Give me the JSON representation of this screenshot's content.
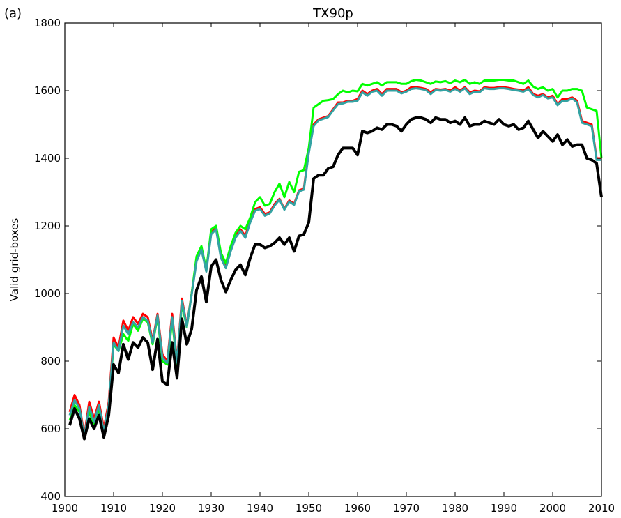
{
  "chart_data": {
    "type": "line",
    "panel_label": "(a)",
    "title": "TX90p",
    "xlabel": "",
    "ylabel": "Valid grid-boxes",
    "xlim": [
      1900,
      2010
    ],
    "ylim": [
      400,
      1800
    ],
    "x_ticks": [
      1900,
      1910,
      1920,
      1930,
      1940,
      1950,
      1960,
      1970,
      1980,
      1990,
      2000,
      2010
    ],
    "y_ticks": [
      400,
      600,
      800,
      1000,
      1200,
      1400,
      1600,
      1800
    ],
    "grid": false,
    "legend": "none",
    "x": [
      1901,
      1902,
      1903,
      1904,
      1905,
      1906,
      1907,
      1908,
      1909,
      1910,
      1911,
      1912,
      1913,
      1914,
      1915,
      1916,
      1917,
      1918,
      1919,
      1920,
      1921,
      1922,
      1923,
      1924,
      1925,
      1926,
      1927,
      1928,
      1929,
      1930,
      1931,
      1932,
      1933,
      1934,
      1935,
      1936,
      1937,
      1938,
      1939,
      1940,
      1941,
      1942,
      1943,
      1944,
      1945,
      1946,
      1947,
      1948,
      1949,
      1950,
      1951,
      1952,
      1953,
      1954,
      1955,
      1956,
      1957,
      1958,
      1959,
      1960,
      1961,
      1962,
      1963,
      1964,
      1965,
      1966,
      1967,
      1968,
      1969,
      1970,
      1971,
      1972,
      1973,
      1974,
      1975,
      1976,
      1977,
      1978,
      1979,
      1980,
      1981,
      1982,
      1983,
      1984,
      1985,
      1986,
      1987,
      1988,
      1989,
      1990,
      1991,
      1992,
      1993,
      1994,
      1995,
      1996,
      1997,
      1998,
      1999,
      2000,
      2001,
      2002,
      2003,
      2004,
      2005,
      2006,
      2007,
      2008,
      2009,
      2010
    ],
    "series": [
      {
        "color": "#ff0000",
        "values": [
          650,
          700,
          670,
          580,
          680,
          630,
          680,
          600,
          680,
          870,
          840,
          920,
          890,
          930,
          910,
          940,
          930,
          860,
          940,
          820,
          800,
          940,
          800,
          985,
          905,
          1000,
          1100,
          1135,
          1070,
          1180,
          1195,
          1110,
          1080,
          1130,
          1170,
          1190,
          1170,
          1215,
          1250,
          1255,
          1235,
          1240,
          1265,
          1280,
          1250,
          1275,
          1265,
          1305,
          1310,
          1420,
          1500,
          1515,
          1520,
          1525,
          1545,
          1565,
          1565,
          1570,
          1570,
          1575,
          1600,
          1590,
          1600,
          1605,
          1590,
          1605,
          1605,
          1605,
          1595,
          1600,
          1610,
          1610,
          1608,
          1605,
          1595,
          1605,
          1603,
          1605,
          1600,
          1610,
          1600,
          1610,
          1595,
          1600,
          1598,
          1610,
          1608,
          1608,
          1610,
          1610,
          1608,
          1605,
          1603,
          1600,
          1610,
          1590,
          1585,
          1590,
          1580,
          1585,
          1560,
          1575,
          1575,
          1580,
          1570,
          1510,
          1505,
          1500,
          1400,
          1400
        ],
        "width": 3
      },
      {
        "color": "#00ff00",
        "values": [
          625,
          670,
          650,
          570,
          650,
          610,
          660,
          585,
          660,
          850,
          830,
          880,
          860,
          910,
          890,
          925,
          915,
          850,
          930,
          800,
          790,
          920,
          790,
          970,
          900,
          1000,
          1110,
          1140,
          1070,
          1190,
          1200,
          1120,
          1090,
          1140,
          1180,
          1200,
          1190,
          1225,
          1270,
          1285,
          1260,
          1265,
          1300,
          1325,
          1285,
          1330,
          1300,
          1360,
          1365,
          1430,
          1550,
          1560,
          1570,
          1572,
          1575,
          1590,
          1600,
          1595,
          1600,
          1598,
          1620,
          1615,
          1620,
          1625,
          1615,
          1625,
          1625,
          1625,
          1620,
          1620,
          1628,
          1632,
          1630,
          1625,
          1620,
          1627,
          1625,
          1628,
          1622,
          1630,
          1625,
          1632,
          1620,
          1625,
          1620,
          1630,
          1630,
          1630,
          1632,
          1632,
          1630,
          1630,
          1625,
          1620,
          1630,
          1612,
          1605,
          1610,
          1600,
          1605,
          1580,
          1600,
          1600,
          1605,
          1605,
          1600,
          1550,
          1545,
          1540,
          1400
        ],
        "width": 3
      },
      {
        "color": "#33a3a3",
        "values": [
          640,
          685,
          660,
          575,
          665,
          620,
          670,
          590,
          670,
          855,
          830,
          905,
          880,
          915,
          900,
          930,
          920,
          855,
          935,
          810,
          795,
          930,
          795,
          978,
          902,
          997,
          1095,
          1130,
          1065,
          1175,
          1190,
          1105,
          1075,
          1125,
          1165,
          1185,
          1165,
          1210,
          1245,
          1250,
          1230,
          1237,
          1260,
          1278,
          1248,
          1272,
          1262,
          1302,
          1307,
          1415,
          1495,
          1512,
          1517,
          1522,
          1542,
          1560,
          1562,
          1567,
          1567,
          1570,
          1595,
          1585,
          1597,
          1600,
          1585,
          1600,
          1600,
          1600,
          1592,
          1597,
          1605,
          1607,
          1605,
          1602,
          1590,
          1602,
          1600,
          1602,
          1597,
          1605,
          1597,
          1607,
          1590,
          1597,
          1595,
          1607,
          1605,
          1605,
          1607,
          1607,
          1605,
          1602,
          1600,
          1597,
          1605,
          1587,
          1580,
          1587,
          1577,
          1580,
          1557,
          1570,
          1570,
          1577,
          1565,
          1505,
          1500,
          1495,
          1395,
          1395
        ],
        "width": 3
      },
      {
        "color": "#000000",
        "values": [
          610,
          660,
          630,
          570,
          630,
          600,
          640,
          575,
          640,
          790,
          765,
          850,
          805,
          855,
          840,
          870,
          855,
          775,
          865,
          740,
          730,
          855,
          750,
          925,
          850,
          895,
          1010,
          1050,
          975,
          1080,
          1100,
          1040,
          1005,
          1040,
          1070,
          1085,
          1055,
          1105,
          1145,
          1145,
          1135,
          1140,
          1150,
          1165,
          1145,
          1165,
          1125,
          1170,
          1175,
          1210,
          1340,
          1350,
          1350,
          1370,
          1375,
          1410,
          1430,
          1430,
          1430,
          1410,
          1480,
          1475,
          1480,
          1490,
          1485,
          1500,
          1500,
          1495,
          1480,
          1500,
          1515,
          1520,
          1520,
          1515,
          1505,
          1520,
          1515,
          1515,
          1505,
          1510,
          1500,
          1520,
          1495,
          1500,
          1500,
          1510,
          1505,
          1500,
          1515,
          1500,
          1495,
          1500,
          1485,
          1490,
          1510,
          1485,
          1460,
          1480,
          1465,
          1450,
          1470,
          1440,
          1455,
          1435,
          1440,
          1440,
          1400,
          1395,
          1385,
          1285
        ],
        "width": 4
      }
    ]
  }
}
